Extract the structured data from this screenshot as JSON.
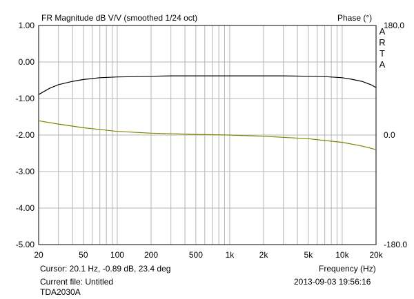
{
  "chart_data": {
    "type": "line",
    "title": "FR Magnitude dB V/V (smoothed 1/24 oct)",
    "right_axis_title": "Phase (°)",
    "brand_vertical": [
      "A",
      "R",
      "T",
      "A"
    ],
    "x_scale": "log",
    "xlim": [
      20,
      20000
    ],
    "x_ticks": [
      {
        "value": 20,
        "label": "20"
      },
      {
        "value": 50,
        "label": "50"
      },
      {
        "value": 100,
        "label": "100"
      },
      {
        "value": 200,
        "label": "200"
      },
      {
        "value": 500,
        "label": "500"
      },
      {
        "value": 1000,
        "label": "1k"
      },
      {
        "value": 2000,
        "label": "2k"
      },
      {
        "value": 5000,
        "label": "5k"
      },
      {
        "value": 10000,
        "label": "10k"
      },
      {
        "value": 20000,
        "label": "20k"
      }
    ],
    "xlabel": "Frequency (Hz)",
    "ylim": [
      -5,
      1
    ],
    "y_ticks": [
      "1.00",
      "0.00",
      "-1.00",
      "-2.00",
      "-3.00",
      "-4.00",
      "-5.00"
    ],
    "y2lim": [
      -180,
      180
    ],
    "y2_ticks": [
      "180.0",
      "0.0",
      "-180.0"
    ],
    "grid": true,
    "series": [
      {
        "axis": "left",
        "color": "#000000",
        "x": [
          20,
          25,
          30,
          40,
          50,
          70,
          100,
          150,
          200,
          300,
          500,
          1000,
          2000,
          3000,
          5000,
          7000,
          10000,
          12000,
          15000,
          18000,
          20000
        ],
        "y": [
          -0.89,
          -0.72,
          -0.62,
          -0.53,
          -0.48,
          -0.43,
          -0.41,
          -0.4,
          -0.39,
          -0.38,
          -0.38,
          -0.38,
          -0.38,
          -0.38,
          -0.39,
          -0.4,
          -0.43,
          -0.47,
          -0.53,
          -0.62,
          -0.7
        ]
      },
      {
        "axis": "right",
        "color": "#808000",
        "x": [
          20,
          30,
          50,
          100,
          200,
          500,
          1000,
          2000,
          5000,
          10000,
          15000,
          20000
        ],
        "y": [
          23.4,
          18,
          12,
          6,
          3,
          1,
          0,
          -2,
          -6,
          -12,
          -18,
          -24
        ]
      }
    ]
  },
  "footer": {
    "cursor": "Cursor: 20.1 Hz, -0.89 dB, 23.4 deg",
    "current_file": "Current file: Untitled",
    "device": "TDA2030A",
    "datetime": "2013-09-03  19:56:16"
  },
  "colors": {
    "background": "#ffffff",
    "grid": "#b4b4b4",
    "axes": "#000000"
  }
}
